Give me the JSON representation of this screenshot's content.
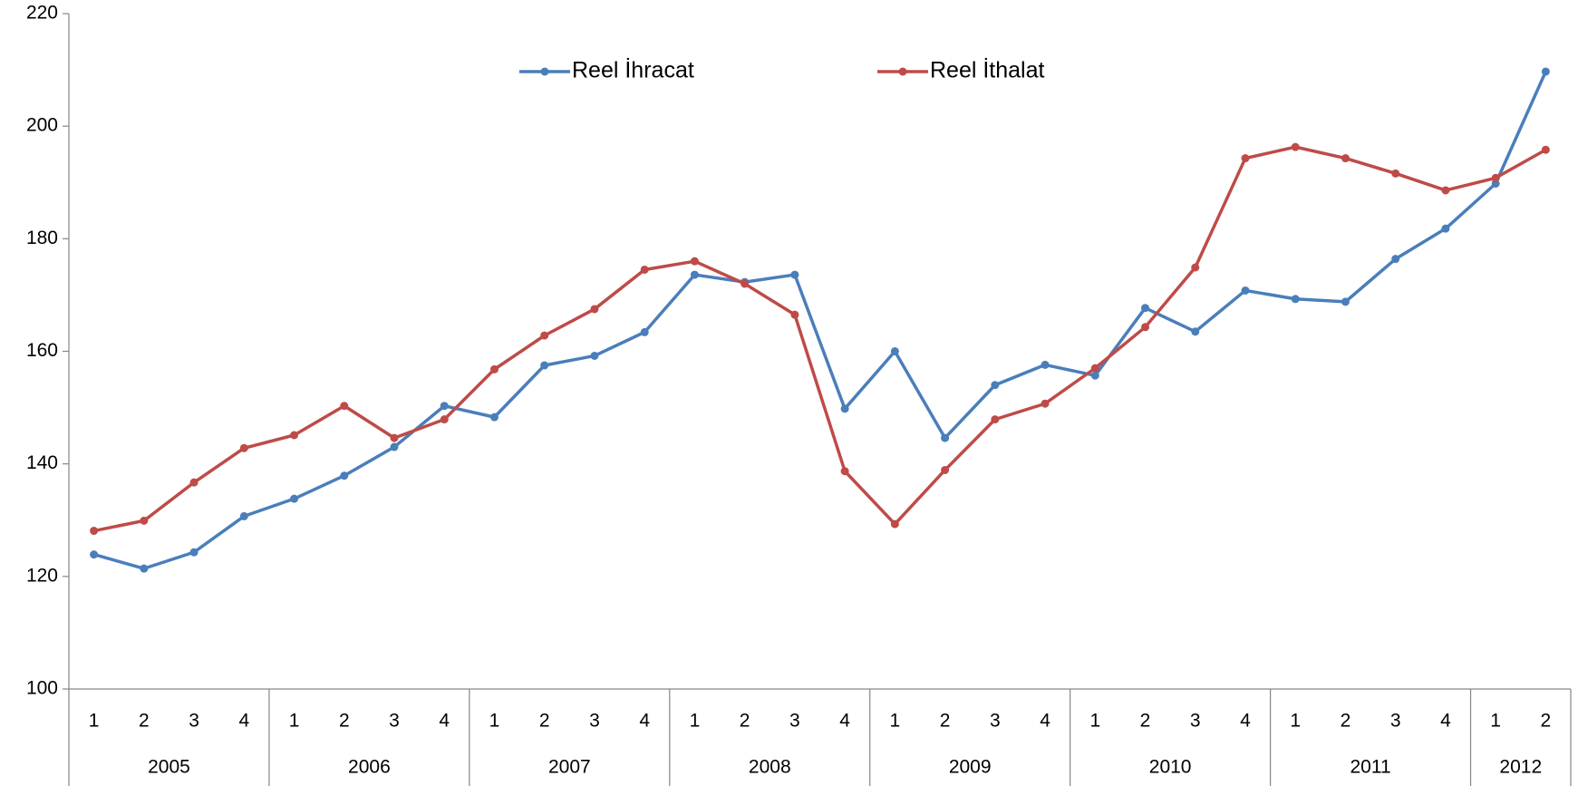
{
  "chart_data": {
    "type": "line",
    "groups": [
      {
        "label": "2005",
        "categories": [
          "1",
          "2",
          "3",
          "4"
        ]
      },
      {
        "label": "2006",
        "categories": [
          "1",
          "2",
          "3",
          "4"
        ]
      },
      {
        "label": "2007",
        "categories": [
          "1",
          "2",
          "3",
          "4"
        ]
      },
      {
        "label": "2008",
        "categories": [
          "1",
          "2",
          "3",
          "4"
        ]
      },
      {
        "label": "2009",
        "categories": [
          "1",
          "2",
          "3",
          "4"
        ]
      },
      {
        "label": "2010",
        "categories": [
          "1",
          "2",
          "3",
          "4"
        ]
      },
      {
        "label": "2011",
        "categories": [
          "1",
          "2",
          "3",
          "4"
        ]
      },
      {
        "label": "2012",
        "categories": [
          "1",
          "2"
        ]
      }
    ],
    "series": [
      {
        "name": "Reel İhracat",
        "color": "#4a7ebb",
        "values": [
          123.9,
          121.4,
          124.3,
          130.7,
          133.8,
          137.9,
          143.0,
          150.3,
          148.3,
          157.5,
          159.2,
          163.4,
          173.6,
          172.3,
          173.6,
          149.8,
          160.0,
          144.6,
          154.0,
          157.6,
          155.7,
          167.7,
          163.5,
          170.8,
          169.3,
          168.8,
          176.4,
          181.8,
          189.8,
          209.7
        ]
      },
      {
        "name": "Reel İthalat",
        "color": "#be4b48",
        "values": [
          128.1,
          129.9,
          136.7,
          142.8,
          145.1,
          150.3,
          144.6,
          147.9,
          156.8,
          162.8,
          167.5,
          174.5,
          176.0,
          172.0,
          166.5,
          138.7,
          129.3,
          138.9,
          147.9,
          150.7,
          157.0,
          164.3,
          174.9,
          194.3,
          196.3,
          194.3,
          191.6,
          188.6,
          190.8,
          195.8
        ]
      }
    ],
    "ylim": [
      100,
      220
    ],
    "yticks": [
      100,
      120,
      140,
      160,
      180,
      200,
      220
    ]
  }
}
